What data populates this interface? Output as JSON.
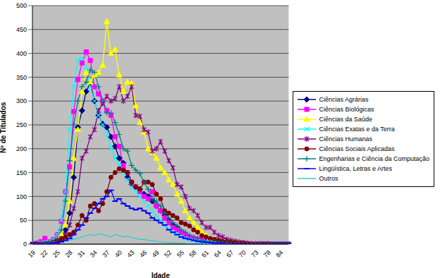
{
  "chart_data": {
    "type": "line",
    "x_label": "Idade",
    "y_label": "Nº de Titulados",
    "categories": [
      "19",
      null,
      null,
      "22",
      null,
      null,
      "25",
      null,
      null,
      "28",
      null,
      null,
      "31",
      null,
      null,
      "34",
      null,
      null,
      "37",
      null,
      null,
      "40",
      null,
      null,
      "43",
      null,
      null,
      "46",
      null,
      null,
      "49",
      null,
      null,
      "52",
      null,
      null,
      "55",
      null,
      null,
      "58",
      null,
      null,
      "61",
      null,
      null,
      "64",
      null,
      null,
      "67",
      null,
      null,
      "70",
      null,
      null,
      "73",
      null,
      null,
      "78",
      null,
      null,
      "84",
      null,
      null
    ],
    "ylim": [
      0,
      500
    ],
    "yticks": [
      0,
      50,
      100,
      150,
      200,
      250,
      300,
      350,
      400,
      450,
      500
    ],
    "grid": true,
    "legend": "right",
    "series": [
      {
        "name": "Ciências Agrárias",
        "color": "#000080",
        "marker": "diamond",
        "values": [
          0,
          0,
          0,
          1,
          2,
          3,
          5,
          10,
          30,
          65,
          140,
          245,
          280,
          320,
          338,
          300,
          270,
          252,
          245,
          225,
          205,
          180,
          170,
          140,
          125,
          120,
          115,
          105,
          100,
          90,
          80,
          70,
          60,
          50,
          40,
          35,
          25,
          20,
          15,
          12,
          10,
          8,
          5,
          4,
          3,
          2,
          2,
          1,
          1,
          0,
          0,
          0,
          0,
          0,
          0,
          0,
          0,
          0,
          0,
          0,
          0,
          0,
          0
        ]
      },
      {
        "name": "Ciências Biológicas",
        "color": "#FF00FF",
        "marker": "square",
        "values": [
          0,
          2,
          5,
          12,
          5,
          10,
          20,
          48,
          110,
          162,
          278,
          345,
          380,
          403,
          385,
          330,
          315,
          300,
          280,
          270,
          225,
          205,
          165,
          150,
          130,
          120,
          110,
          100,
          95,
          110,
          80,
          70,
          55,
          45,
          35,
          30,
          25,
          20,
          15,
          12,
          10,
          8,
          6,
          5,
          4,
          3,
          2,
          2,
          1,
          0,
          0,
          0,
          0,
          0,
          0,
          0,
          0,
          0,
          0,
          0,
          0,
          0,
          0
        ]
      },
      {
        "name": "Ciências da Saúde",
        "color": "#FFFF00",
        "marker": "triangle",
        "values": [
          0,
          0,
          1,
          2,
          3,
          5,
          10,
          20,
          40,
          90,
          180,
          240,
          320,
          360,
          340,
          355,
          360,
          375,
          467,
          400,
          408,
          355,
          320,
          340,
          337,
          290,
          255,
          235,
          200,
          192,
          180,
          160,
          150,
          135,
          125,
          105,
          90,
          70,
          55,
          45,
          35,
          25,
          18,
          12,
          10,
          8,
          6,
          5,
          4,
          3,
          2,
          2,
          1,
          0,
          0,
          0,
          0,
          0,
          0,
          0,
          0,
          0,
          0
        ]
      },
      {
        "name": "Ciências Exatas e da Terra",
        "color": "#00FFFF",
        "marker": "x",
        "values": [
          0,
          0,
          2,
          3,
          5,
          10,
          20,
          50,
          110,
          240,
          330,
          385,
          390,
          370,
          330,
          300,
          270,
          250,
          230,
          200,
          180,
          165,
          150,
          135,
          120,
          110,
          100,
          90,
          80,
          70,
          60,
          50,
          40,
          32,
          25,
          20,
          15,
          12,
          10,
          8,
          6,
          5,
          4,
          3,
          2,
          2,
          1,
          1,
          1,
          0,
          0,
          0,
          0,
          0,
          0,
          0,
          0,
          0,
          0,
          0,
          0,
          0,
          0
        ]
      },
      {
        "name": "Ciências Humanas",
        "color": "#800080",
        "marker": "star",
        "values": [
          0,
          0,
          0,
          0,
          1,
          2,
          5,
          10,
          20,
          40,
          75,
          110,
          180,
          195,
          225,
          240,
          280,
          295,
          310,
          300,
          305,
          330,
          300,
          310,
          330,
          270,
          268,
          240,
          235,
          195,
          200,
          215,
          195,
          175,
          160,
          125,
          120,
          100,
          75,
          70,
          60,
          45,
          35,
          35,
          25,
          18,
          15,
          10,
          8,
          6,
          4,
          3,
          2,
          1,
          1,
          1,
          0,
          1,
          0,
          0,
          0,
          0,
          0
        ]
      },
      {
        "name": "Ciências Sociais Aplicadas",
        "color": "#800000",
        "marker": "circle",
        "values": [
          0,
          0,
          0,
          1,
          2,
          4,
          8,
          12,
          15,
          20,
          25,
          40,
          60,
          50,
          80,
          85,
          70,
          85,
          110,
          140,
          150,
          158,
          155,
          150,
          130,
          120,
          115,
          130,
          130,
          125,
          105,
          95,
          70,
          65,
          60,
          55,
          45,
          42,
          38,
          30,
          25,
          18,
          15,
          12,
          10,
          8,
          6,
          5,
          4,
          3,
          2,
          2,
          1,
          0,
          0,
          0,
          1,
          0,
          0,
          0,
          0,
          0,
          0
        ]
      },
      {
        "name": "Engenharias e Ciência da Computação",
        "color": "#008080",
        "marker": "plus",
        "values": [
          0,
          0,
          1,
          2,
          3,
          5,
          12,
          30,
          90,
          175,
          250,
          300,
          330,
          340,
          365,
          360,
          330,
          300,
          275,
          275,
          255,
          230,
          200,
          195,
          165,
          155,
          148,
          130,
          115,
          95,
          90,
          80,
          65,
          55,
          45,
          38,
          30,
          25,
          18,
          15,
          12,
          8,
          6,
          5,
          4,
          3,
          2,
          2,
          1,
          0,
          0,
          0,
          0,
          0,
          0,
          0,
          0,
          0,
          0,
          0,
          0,
          0,
          0
        ]
      },
      {
        "name": "Lingüística, Letras e Artes",
        "color": "#0000FF",
        "marker": "dash",
        "values": [
          0,
          0,
          0,
          0,
          1,
          2,
          3,
          5,
          8,
          12,
          20,
          30,
          40,
          55,
          65,
          75,
          85,
          95,
          100,
          113,
          90,
          95,
          85,
          80,
          75,
          72,
          75,
          70,
          65,
          55,
          50,
          45,
          40,
          30,
          25,
          20,
          15,
          12,
          10,
          8,
          6,
          5,
          4,
          3,
          2,
          2,
          1,
          0,
          0,
          0,
          0,
          0,
          0,
          0,
          0,
          0,
          0,
          0,
          0,
          0,
          0,
          0,
          0
        ]
      },
      {
        "name": "Outros",
        "color": "#33CCCC",
        "marker": "none",
        "values": [
          0,
          0,
          0,
          0,
          0,
          0,
          2,
          4,
          6,
          8,
          10,
          12,
          15,
          18,
          20,
          18,
          22,
          20,
          18,
          15,
          20,
          18,
          15,
          17,
          14,
          12,
          10,
          10,
          8,
          7,
          6,
          5,
          4,
          3,
          3,
          2,
          2,
          1,
          0,
          0,
          0,
          0,
          0,
          0,
          0,
          0,
          0,
          0,
          0,
          0,
          0,
          0,
          0,
          0,
          0,
          0,
          0,
          0,
          0,
          0,
          0,
          0,
          0
        ]
      }
    ]
  }
}
